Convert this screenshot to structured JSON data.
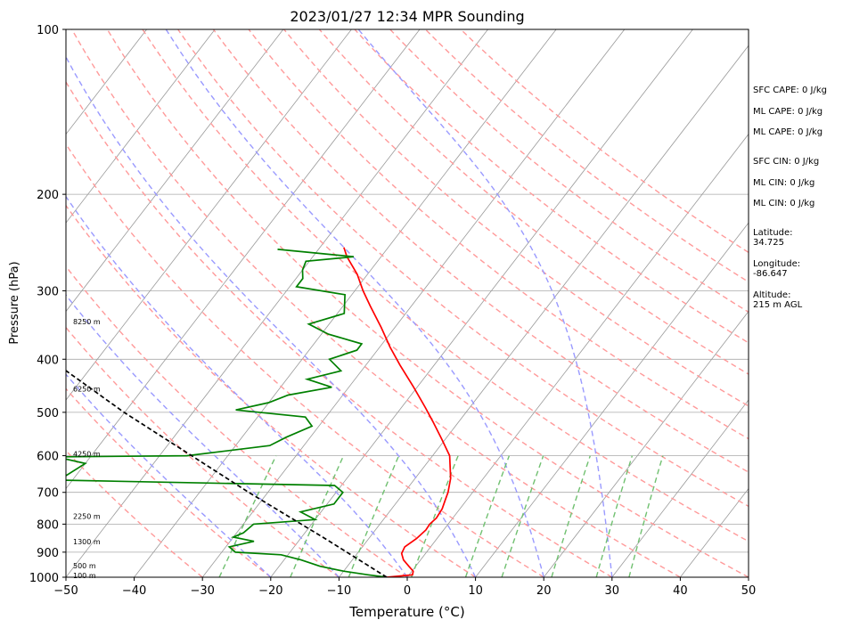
{
  "chart_data": {
    "type": "line",
    "title": "2023/01/27 12:34 MPR Sounding",
    "xlabel": "Temperature (°C)",
    "ylabel": "Pressure (hPa)",
    "xlim": [
      -50,
      50
    ],
    "ylim": [
      1000,
      100
    ],
    "y_scale": "log",
    "grid": true,
    "x_ticks": [
      -50,
      -40,
      -30,
      -20,
      -10,
      0,
      10,
      20,
      30,
      40,
      50
    ],
    "x_tick_labels": [
      "−50",
      "−40",
      "−30",
      "−20",
      "−10",
      "0",
      "10",
      "20",
      "30",
      "40",
      "50"
    ],
    "y_ticks": [
      1000,
      900,
      800,
      700,
      600,
      500,
      400,
      300,
      200,
      100
    ],
    "y_tick_labels": [
      "1000",
      "900",
      "800",
      "700",
      "600",
      "500",
      "400",
      "300",
      "200",
      "100"
    ],
    "isotherms": [
      -100,
      -90,
      -80,
      -70,
      -60,
      -50,
      -40,
      -30,
      -20,
      -10,
      0,
      10,
      20,
      30,
      40,
      50
    ],
    "dry_adiabats_C": [
      -30,
      -20,
      -10,
      0,
      10,
      20,
      30,
      40,
      50,
      60,
      70,
      80,
      90,
      100,
      110,
      120,
      130,
      140,
      150
    ],
    "moist_adiabats_C": [
      -20,
      -10,
      0,
      10,
      20,
      30
    ],
    "mixing_ratios_gkg": [
      0.4,
      1,
      2,
      4,
      7,
      10,
      16,
      24,
      32
    ],
    "colors": {
      "temperature": "#ff0000",
      "dewpoint": "#008000",
      "parcel": "#000000",
      "dry_adiabat": "#ff9a9a",
      "moist_adiabat": "#9a9aff",
      "mixing_ratio": "#70c070",
      "isotherm": "#999999",
      "isobar": "#aaaaaa"
    },
    "series": [
      {
        "key": "temperature",
        "points": [
          [
            1000,
            -3.0
          ],
          [
            990,
            0.5
          ],
          [
            975,
            0.2
          ],
          [
            955,
            -1.0
          ],
          [
            930,
            -2.5
          ],
          [
            905,
            -3.5
          ],
          [
            880,
            -3.8
          ],
          [
            850,
            -3.0
          ],
          [
            820,
            -2.6
          ],
          [
            800,
            -2.7
          ],
          [
            780,
            -2.4
          ],
          [
            750,
            -2.6
          ],
          [
            720,
            -3.2
          ],
          [
            700,
            -3.6
          ],
          [
            660,
            -4.8
          ],
          [
            600,
            -7.5
          ],
          [
            560,
            -10.5
          ],
          [
            520,
            -13.8
          ],
          [
            490,
            -16.5
          ],
          [
            450,
            -20.5
          ],
          [
            410,
            -25.0
          ],
          [
            380,
            -28.5
          ],
          [
            350,
            -32.0
          ],
          [
            320,
            -36.0
          ],
          [
            300,
            -38.8
          ],
          [
            280,
            -41.5
          ],
          [
            260,
            -45.0
          ],
          [
            250,
            -46.5
          ]
        ]
      },
      {
        "key": "dewpoint",
        "points": [
          [
            1000,
            -3.0
          ],
          [
            990,
            -6.0
          ],
          [
            975,
            -10.0
          ],
          [
            955,
            -14.0
          ],
          [
            930,
            -17.5
          ],
          [
            910,
            -21.0
          ],
          [
            900,
            -28.0
          ],
          [
            880,
            -29.5
          ],
          [
            860,
            -26.5
          ],
          [
            845,
            -30.0
          ],
          [
            830,
            -29.0
          ],
          [
            800,
            -28.5
          ],
          [
            785,
            -20.0
          ],
          [
            760,
            -23.0
          ],
          [
            735,
            -19.0
          ],
          [
            700,
            -19.0
          ],
          [
            680,
            -21.0
          ],
          [
            665,
            -62.0
          ],
          [
            620,
            -60.0
          ],
          [
            603,
            -65.0
          ],
          [
            600,
            -46.0
          ],
          [
            575,
            -35.0
          ],
          [
            555,
            -33.5
          ],
          [
            530,
            -31.0
          ],
          [
            510,
            -33.0
          ],
          [
            495,
            -44.0
          ],
          [
            480,
            -40.0
          ],
          [
            465,
            -38.0
          ],
          [
            450,
            -32.5
          ],
          [
            435,
            -37.0
          ],
          [
            420,
            -33.0
          ],
          [
            400,
            -36.0
          ],
          [
            385,
            -33.0
          ],
          [
            375,
            -33.0
          ],
          [
            360,
            -39.0
          ],
          [
            345,
            -43.0
          ],
          [
            330,
            -39.0
          ],
          [
            305,
            -41.0
          ],
          [
            295,
            -49.0
          ],
          [
            285,
            -49.0
          ],
          [
            275,
            -50.0
          ],
          [
            265,
            -50.5
          ],
          [
            260,
            -44.0
          ],
          [
            252,
            -56.0
          ]
        ]
      },
      {
        "key": "parcel",
        "points": [
          [
            1000,
            -3.0
          ],
          [
            850,
            -16.4
          ],
          [
            700,
            -32.8
          ],
          [
            500,
            -60.1
          ],
          [
            309,
            -96.4
          ]
        ]
      }
    ],
    "height_labels": [
      {
        "p": 1000,
        "label": "100 m"
      },
      {
        "p": 960,
        "label": "500 m"
      },
      {
        "p": 868,
        "label": "1300 m"
      },
      {
        "p": 780,
        "label": "2250 m"
      },
      {
        "p": 600,
        "label": "4250 m"
      },
      {
        "p": 456,
        "label": "6250 m"
      },
      {
        "p": 344,
        "label": "8250 m"
      }
    ]
  },
  "info": {
    "sfc_cape": "SFC CAPE: 0 J/kg",
    "ml_cape_1": "ML CAPE: 0 J/kg",
    "ml_cape_2": "ML CAPE: 0 J/kg",
    "sfc_cin": "SFC CIN: 0 J/kg",
    "ml_cin_1": "ML CIN: 0 J/kg",
    "ml_cin_2": "ML CIN: 0 J/kg",
    "latitude_label": "Latitude:",
    "latitude_value": "34.725",
    "longitude_label": "Longitude:",
    "longitude_value": "-86.647",
    "altitude_label": "Altitude:",
    "altitude_value": "215 m AGL"
  }
}
